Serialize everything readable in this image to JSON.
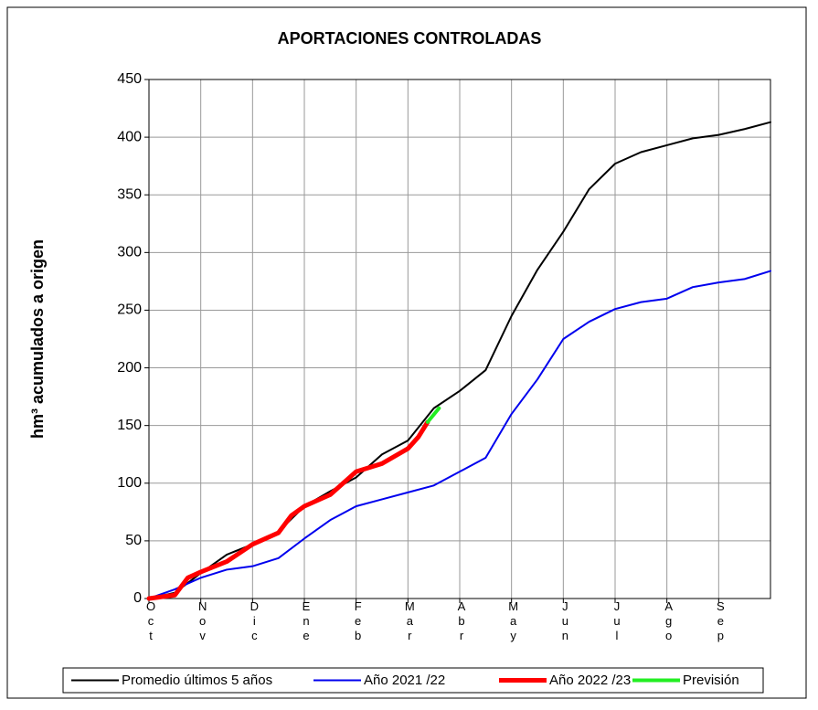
{
  "chart_data": {
    "type": "line",
    "title": "APORTACIONES CONTROLADAS",
    "y_label": "hm³ acumulados a origen",
    "xlim": [
      0,
      12
    ],
    "xticks": [
      {
        "value": 0,
        "label": "Oct"
      },
      {
        "value": 1,
        "label": "Nov"
      },
      {
        "value": 2,
        "label": "Dic"
      },
      {
        "value": 3,
        "label": "Ene"
      },
      {
        "value": 4,
        "label": "Feb"
      },
      {
        "value": 5,
        "label": "Mar"
      },
      {
        "value": 6,
        "label": "Abr"
      },
      {
        "value": 7,
        "label": "May"
      },
      {
        "value": 8,
        "label": "Jun"
      },
      {
        "value": 9,
        "label": "Jul"
      },
      {
        "value": 10,
        "label": "Ago"
      },
      {
        "value": 11,
        "label": "Sep"
      }
    ],
    "ylim": [
      0,
      450
    ],
    "yticks": [
      0,
      50,
      100,
      150,
      200,
      250,
      300,
      350,
      400,
      450
    ],
    "grid": true,
    "legend": "bottom",
    "series": [
      {
        "name": "Promedio últimos 5 años",
        "color": "#000000",
        "width": 2,
        "x": [
          0,
          0.5,
          1,
          1.5,
          2,
          2.5,
          3,
          3.5,
          4,
          4.5,
          5,
          5.5,
          6,
          6.5,
          7,
          7.5,
          8,
          8.5,
          9,
          9.5,
          10,
          10.5,
          11,
          11.5,
          12
        ],
        "values": [
          0,
          5,
          22,
          38,
          47,
          58,
          80,
          93,
          105,
          125,
          137,
          165,
          180,
          198,
          245,
          285,
          318,
          355,
          377,
          387,
          393,
          399,
          402,
          407,
          413
        ]
      },
      {
        "name": "Año 2021 /22",
        "color": "#0000ee",
        "width": 2,
        "x": [
          0,
          0.5,
          1,
          1.5,
          2,
          2.5,
          3,
          3.5,
          4,
          4.5,
          5,
          5.5,
          6,
          6.5,
          7,
          7.5,
          8,
          8.5,
          9,
          9.5,
          10,
          10.5,
          11,
          11.5,
          12
        ],
        "values": [
          0,
          8,
          18,
          25,
          28,
          35,
          52,
          68,
          80,
          86,
          92,
          98,
          110,
          122,
          160,
          190,
          225,
          240,
          251,
          257,
          260,
          270,
          274,
          277,
          284
        ]
      },
      {
        "name": "Año 2022 /23",
        "color": "#ff0000",
        "width": 5,
        "x": [
          0,
          0.5,
          0.75,
          1,
          1.5,
          2,
          2.5,
          2.75,
          3,
          3.5,
          3.75,
          4,
          4.5,
          5,
          5.2,
          5.38
        ],
        "values": [
          0,
          3,
          18,
          23,
          32,
          47,
          57,
          72,
          80,
          90,
          100,
          110,
          117,
          130,
          140,
          153
        ]
      },
      {
        "name": "Previsión",
        "color": "#22ee22",
        "width": 4,
        "x": [
          5.38,
          5.6
        ],
        "values": [
          153,
          165
        ]
      }
    ]
  }
}
